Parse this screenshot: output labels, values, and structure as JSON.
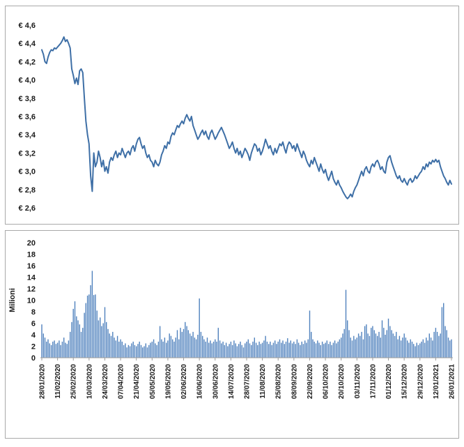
{
  "page": {
    "background": "#ffffff"
  },
  "chart_data": [
    {
      "type": "line",
      "name": "share-price",
      "title": "",
      "ylim": [
        2.6,
        4.6
      ],
      "y_tick_values": [
        2.6,
        2.8,
        3.0,
        3.2,
        3.4,
        3.6,
        3.8,
        4.0,
        4.2,
        4.4,
        4.6
      ],
      "y_tick_labels": [
        "€ 2,6",
        "€ 2,8",
        "€ 3,0",
        "€ 3,2",
        "€ 3,4",
        "€ 3,6",
        "€ 3,8",
        "€ 4,0",
        "€ 4,2",
        "€ 4,4",
        "€ 4,6"
      ],
      "x_tick_step": 10,
      "x_tick_labels": [
        "28/01/2020",
        "11/02/2020",
        "25/02/2020",
        "10/03/2020",
        "24/03/2020",
        "07/04/2020",
        "21/04/2020",
        "05/05/2020",
        "19/05/2020",
        "02/06/2020",
        "16/06/2020",
        "30/06/2020",
        "14/07/2020",
        "28/07/2020",
        "11/08/2020",
        "25/08/2020",
        "08/09/2020",
        "22/09/2020",
        "06/10/2020",
        "20/10/2020",
        "03/11/2020",
        "17/11/2020",
        "01/12/2020",
        "15/12/2020",
        "29/12/2020",
        "12/01/2021",
        "26/01/2021"
      ],
      "color": "#3e6fa6",
      "values": [
        4.33,
        4.28,
        4.2,
        4.18,
        4.25,
        4.3,
        4.33,
        4.32,
        4.35,
        4.34,
        4.36,
        4.38,
        4.4,
        4.43,
        4.47,
        4.42,
        4.44,
        4.4,
        4.35,
        4.12,
        4.05,
        3.96,
        4.02,
        3.95,
        4.1,
        4.12,
        4.08,
        3.8,
        3.55,
        3.4,
        3.3,
        2.95,
        2.78,
        3.2,
        3.05,
        3.1,
        3.22,
        3.15,
        3.05,
        3.12,
        3.0,
        3.05,
        2.98,
        3.1,
        3.15,
        3.12,
        3.18,
        3.22,
        3.15,
        3.2,
        3.18,
        3.25,
        3.2,
        3.15,
        3.2,
        3.22,
        3.18,
        3.25,
        3.28,
        3.22,
        3.3,
        3.35,
        3.37,
        3.3,
        3.25,
        3.28,
        3.2,
        3.15,
        3.18,
        3.12,
        3.1,
        3.05,
        3.12,
        3.08,
        3.06,
        3.1,
        3.18,
        3.22,
        3.28,
        3.25,
        3.32,
        3.3,
        3.38,
        3.42,
        3.4,
        3.45,
        3.5,
        3.48,
        3.52,
        3.55,
        3.52,
        3.58,
        3.62,
        3.58,
        3.55,
        3.6,
        3.5,
        3.45,
        3.4,
        3.35,
        3.38,
        3.42,
        3.45,
        3.4,
        3.44,
        3.38,
        3.35,
        3.42,
        3.45,
        3.4,
        3.35,
        3.38,
        3.42,
        3.45,
        3.48,
        3.44,
        3.4,
        3.35,
        3.3,
        3.25,
        3.28,
        3.32,
        3.25,
        3.2,
        3.25,
        3.18,
        3.22,
        3.15,
        3.2,
        3.25,
        3.22,
        3.18,
        3.12,
        3.2,
        3.25,
        3.3,
        3.28,
        3.22,
        3.25,
        3.18,
        3.22,
        3.28,
        3.35,
        3.3,
        3.25,
        3.28,
        3.22,
        3.18,
        3.25,
        3.2,
        3.25,
        3.3,
        3.28,
        3.32,
        3.25,
        3.2,
        3.28,
        3.32,
        3.3,
        3.25,
        3.28,
        3.22,
        3.3,
        3.25,
        3.2,
        3.15,
        3.22,
        3.18,
        3.12,
        3.08,
        3.05,
        3.12,
        3.08,
        3.15,
        3.1,
        3.05,
        3.0,
        3.08,
        3.02,
        2.98,
        3.02,
        2.95,
        2.9,
        2.95,
        3.0,
        2.92,
        2.88,
        2.85,
        2.9,
        2.85,
        2.82,
        2.78,
        2.75,
        2.72,
        2.7,
        2.72,
        2.75,
        2.72,
        2.78,
        2.82,
        2.85,
        2.9,
        2.95,
        3.0,
        2.95,
        3.02,
        3.05,
        3.0,
        2.98,
        3.05,
        3.08,
        3.05,
        3.1,
        3.12,
        3.08,
        3.02,
        3.05,
        3.0,
        2.98,
        3.1,
        3.15,
        3.17,
        3.1,
        3.05,
        3.0,
        2.95,
        2.92,
        2.95,
        2.9,
        2.88,
        2.92,
        2.88,
        2.85,
        2.9,
        2.92,
        2.88,
        2.9,
        2.95,
        2.92,
        2.95,
        2.98,
        3.0,
        3.05,
        3.02,
        3.08,
        3.05,
        3.1,
        3.08,
        3.12,
        3.1,
        3.13,
        3.1,
        3.12,
        3.05,
        3.0,
        2.95,
        2.92,
        2.88,
        2.85,
        2.9,
        2.86
      ]
    },
    {
      "type": "bar",
      "name": "volume",
      "title": "",
      "ylabel": "Milioni",
      "ylim": [
        0,
        20
      ],
      "y_tick_values": [
        0,
        2,
        4,
        6,
        8,
        10,
        12,
        14,
        16,
        18,
        20
      ],
      "y_tick_labels": [
        "0",
        "2",
        "4",
        "6",
        "8",
        "10",
        "12",
        "14",
        "16",
        "18",
        "20"
      ],
      "x_tick_step": 10,
      "x_tick_labels": [
        "28/01/2020",
        "11/02/2020",
        "25/02/2020",
        "10/03/2020",
        "24/03/2020",
        "07/04/2020",
        "21/04/2020",
        "05/05/2020",
        "19/05/2020",
        "02/06/2020",
        "16/06/2020",
        "30/06/2020",
        "14/07/2020",
        "28/07/2020",
        "11/08/2020",
        "25/08/2020",
        "08/09/2020",
        "22/09/2020",
        "06/10/2020",
        "20/10/2020",
        "03/11/2020",
        "17/11/2020",
        "01/12/2020",
        "15/12/2020",
        "29/12/2020",
        "12/01/2021",
        "26/01/2021"
      ],
      "color": "#4f81bd",
      "values": [
        5.8,
        4.2,
        3.5,
        2.8,
        3.2,
        2.5,
        2.2,
        2.8,
        3.0,
        2.4,
        2.6,
        3.0,
        2.2,
        2.8,
        3.5,
        2.6,
        2.4,
        3.0,
        4.5,
        6.2,
        8.5,
        9.8,
        7.2,
        6.5,
        5.8,
        4.5,
        5.2,
        7.8,
        9.5,
        10.8,
        11.0,
        12.6,
        15.1,
        10.9,
        11.0,
        8.2,
        6.5,
        7.0,
        5.5,
        6.0,
        8.8,
        6.2,
        5.0,
        4.2,
        3.8,
        4.5,
        3.5,
        3.0,
        3.8,
        2.8,
        3.2,
        2.8,
        2.2,
        2.5,
        1.8,
        2.2,
        2.0,
        2.5,
        2.8,
        2.2,
        2.0,
        2.4,
        2.8,
        2.2,
        1.8,
        2.0,
        2.5,
        1.8,
        2.2,
        2.6,
        2.8,
        3.2,
        2.5,
        2.2,
        2.8,
        5.5,
        3.2,
        2.8,
        3.5,
        2.6,
        3.0,
        4.2,
        3.8,
        3.2,
        2.8,
        3.5,
        4.8,
        3.2,
        5.2,
        4.5,
        5.0,
        6.2,
        5.5,
        4.8,
        4.2,
        3.8,
        4.5,
        3.5,
        3.2,
        4.0,
        10.3,
        4.5,
        3.8,
        3.2,
        2.8,
        3.5,
        2.6,
        3.0,
        2.5,
        2.8,
        3.2,
        2.8,
        5.2,
        3.0,
        2.5,
        2.8,
        2.2,
        2.6,
        2.0,
        2.4,
        2.8,
        2.2,
        3.0,
        2.5,
        2.0,
        2.4,
        2.8,
        2.2,
        1.8,
        2.5,
        2.8,
        3.2,
        2.5,
        2.2,
        2.8,
        3.5,
        2.6,
        2.2,
        2.8,
        2.4,
        2.6,
        3.0,
        3.8,
        2.8,
        2.4,
        2.8,
        2.2,
        2.6,
        3.0,
        2.4,
        2.8,
        3.2,
        2.6,
        3.0,
        2.4,
        2.8,
        3.4,
        2.6,
        3.0,
        2.5,
        2.8,
        2.4,
        3.2,
        2.6,
        2.2,
        2.8,
        2.4,
        3.0,
        2.6,
        3.2,
        8.2,
        4.5,
        3.2,
        2.8,
        2.5,
        3.0,
        2.6,
        2.2,
        2.8,
        2.4,
        2.6,
        3.0,
        2.4,
        2.8,
        2.2,
        2.6,
        3.0,
        2.5,
        2.8,
        3.2,
        3.5,
        4.2,
        5.0,
        11.8,
        6.5,
        4.8,
        3.5,
        3.0,
        3.8,
        3.2,
        3.5,
        4.2,
        3.8,
        4.5,
        3.2,
        5.5,
        5.8,
        4.2,
        3.8,
        5.2,
        5.5,
        4.8,
        4.2,
        3.8,
        4.5,
        3.5,
        6.5,
        5.2,
        4.0,
        4.8,
        6.8,
        5.5,
        4.8,
        4.2,
        3.8,
        4.5,
        3.2,
        3.8,
        3.0,
        3.5,
        4.2,
        3.5,
        3.0,
        2.6,
        3.2,
        2.8,
        2.4,
        2.0,
        2.6,
        2.2,
        2.5,
        2.8,
        3.2,
        2.6,
        3.5,
        3.0,
        4.2,
        3.5,
        3.0,
        4.5,
        5.2,
        4.5,
        3.8,
        4.2,
        8.8,
        9.5,
        5.5,
        4.8,
        3.5,
        3.0,
        3.2
      ]
    }
  ]
}
